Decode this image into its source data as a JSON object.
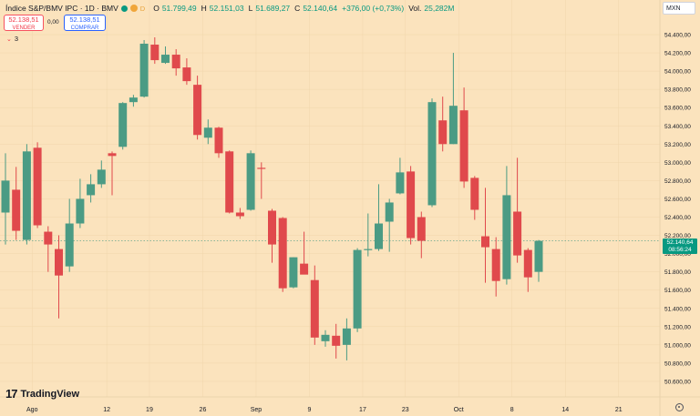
{
  "header": {
    "symbol": "Índice S&P/BMV IPC · 1D · BMV",
    "status_letter": "D",
    "ohlc": [
      {
        "label": "O",
        "value": "51.799,49"
      },
      {
        "label": "H",
        "value": "52.151,03"
      },
      {
        "label": "L",
        "value": "51.689,27"
      },
      {
        "label": "C",
        "value": "52.140,64"
      }
    ],
    "change": "+376,00 (+0,73%)",
    "volume_label": "Vol.",
    "volume_value": "25,282M"
  },
  "trade": {
    "sell_price": "52.138,51",
    "sell_label": "VENDER",
    "spread": "0,00",
    "buy_price": "52.138,51",
    "buy_label": "COMPRAR"
  },
  "indicator": {
    "count": "3"
  },
  "currency": "MXN",
  "last_price": {
    "value": "52.140,64",
    "countdown": "08:56:24"
  },
  "brand": "TradingView",
  "colors": {
    "up": "#4b9b84",
    "down": "#e0494c",
    "background": "#fbe3bd"
  },
  "chart_data": {
    "type": "candlestick",
    "title": "Índice S&P/BMV IPC · 1D · BMV",
    "ylim": [
      50500,
      54550
    ],
    "y_ticks": [
      50600,
      50800,
      51000,
      51200,
      51400,
      51600,
      51800,
      52000,
      52200,
      52400,
      52600,
      52800,
      53000,
      53200,
      53400,
      53600,
      53800,
      54000,
      54200,
      54400
    ],
    "y_tick_labels": [
      "50.600,00",
      "50.800,00",
      "51.000,00",
      "51.200,00",
      "51.400,00",
      "51.600,00",
      "51.800,00",
      "52.000,00",
      "52.200,00",
      "52.400,00",
      "52.600,00",
      "52.800,00",
      "53.000,00",
      "53.200,00",
      "53.400,00",
      "53.600,00",
      "53.800,00",
      "54.000,00",
      "54.200,00",
      "54.400,00"
    ],
    "x_ticks": [
      {
        "index": 2.5,
        "label": "Ago"
      },
      {
        "index": 9.5,
        "label": "12"
      },
      {
        "index": 13.5,
        "label": "19"
      },
      {
        "index": 18.5,
        "label": "26"
      },
      {
        "index": 23.5,
        "label": "Sep"
      },
      {
        "index": 28.5,
        "label": "9"
      },
      {
        "index": 33.5,
        "label": "17"
      },
      {
        "index": 37.5,
        "label": "23"
      },
      {
        "index": 42.5,
        "label": "Oct"
      },
      {
        "index": 47.5,
        "label": "8"
      },
      {
        "index": 52.5,
        "label": "14"
      },
      {
        "index": 57.5,
        "label": "21"
      }
    ],
    "candles": [
      {
        "o": 52450,
        "h": 53100,
        "l": 52100,
        "c": 52800
      },
      {
        "o": 52700,
        "h": 52950,
        "l": 52150,
        "c": 52250
      },
      {
        "o": 52150,
        "h": 53200,
        "l": 52100,
        "c": 53120
      },
      {
        "o": 53160,
        "h": 53220,
        "l": 52280,
        "c": 52310
      },
      {
        "o": 52240,
        "h": 52300,
        "l": 51800,
        "c": 52100
      },
      {
        "o": 52050,
        "h": 52200,
        "l": 51290,
        "c": 51760
      },
      {
        "o": 51860,
        "h": 52600,
        "l": 51800,
        "c": 52330
      },
      {
        "o": 52330,
        "h": 52820,
        "l": 52280,
        "c": 52600
      },
      {
        "o": 52640,
        "h": 52870,
        "l": 52560,
        "c": 52760
      },
      {
        "o": 52760,
        "h": 53020,
        "l": 52720,
        "c": 52920
      },
      {
        "o": 53100,
        "h": 53120,
        "l": 52640,
        "c": 53070
      },
      {
        "o": 53170,
        "h": 53660,
        "l": 53140,
        "c": 53650
      },
      {
        "o": 53660,
        "h": 53740,
        "l": 53610,
        "c": 53710
      },
      {
        "o": 53720,
        "h": 54340,
        "l": 53710,
        "c": 54300
      },
      {
        "o": 54290,
        "h": 54370,
        "l": 54080,
        "c": 54120
      },
      {
        "o": 54090,
        "h": 54270,
        "l": 54080,
        "c": 54180
      },
      {
        "o": 54180,
        "h": 54240,
        "l": 53950,
        "c": 54030
      },
      {
        "o": 54040,
        "h": 54140,
        "l": 53850,
        "c": 53890
      },
      {
        "o": 53850,
        "h": 53950,
        "l": 53250,
        "c": 53300
      },
      {
        "o": 53270,
        "h": 53470,
        "l": 53200,
        "c": 53380
      },
      {
        "o": 53380,
        "h": 53390,
        "l": 53050,
        "c": 53100
      },
      {
        "o": 53120,
        "h": 53130,
        "l": 52440,
        "c": 52450
      },
      {
        "o": 52450,
        "h": 52500,
        "l": 52380,
        "c": 52410
      },
      {
        "o": 52480,
        "h": 53130,
        "l": 52470,
        "c": 53100
      },
      {
        "o": 52940,
        "h": 53000,
        "l": 52600,
        "c": 52930
      },
      {
        "o": 52470,
        "h": 52490,
        "l": 51900,
        "c": 52100
      },
      {
        "o": 52390,
        "h": 52400,
        "l": 51580,
        "c": 51620
      },
      {
        "o": 51630,
        "h": 51960,
        "l": 51620,
        "c": 51960
      },
      {
        "o": 51890,
        "h": 52240,
        "l": 51780,
        "c": 51770
      },
      {
        "o": 51710,
        "h": 51870,
        "l": 51000,
        "c": 51080
      },
      {
        "o": 51040,
        "h": 51160,
        "l": 50980,
        "c": 51110
      },
      {
        "o": 51100,
        "h": 51230,
        "l": 50850,
        "c": 50990
      },
      {
        "o": 51000,
        "h": 51290,
        "l": 50830,
        "c": 51180
      },
      {
        "o": 51180,
        "h": 52060,
        "l": 51140,
        "c": 52040
      },
      {
        "o": 52040,
        "h": 52440,
        "l": 51970,
        "c": 52050
      },
      {
        "o": 52050,
        "h": 52760,
        "l": 52030,
        "c": 52330
      },
      {
        "o": 52350,
        "h": 52600,
        "l": 52020,
        "c": 52560
      },
      {
        "o": 52660,
        "h": 53050,
        "l": 52650,
        "c": 52890
      },
      {
        "o": 52900,
        "h": 52960,
        "l": 52100,
        "c": 52170
      },
      {
        "o": 52400,
        "h": 52460,
        "l": 51950,
        "c": 52140
      },
      {
        "o": 52530,
        "h": 53700,
        "l": 52510,
        "c": 53660
      },
      {
        "o": 53460,
        "h": 53720,
        "l": 53120,
        "c": 53200
      },
      {
        "o": 53200,
        "h": 54200,
        "l": 53200,
        "c": 53620
      },
      {
        "o": 53570,
        "h": 53820,
        "l": 52720,
        "c": 52790
      },
      {
        "o": 52830,
        "h": 52850,
        "l": 52370,
        "c": 52480
      },
      {
        "o": 52190,
        "h": 52720,
        "l": 51680,
        "c": 52070
      },
      {
        "o": 52050,
        "h": 52180,
        "l": 51530,
        "c": 51700
      },
      {
        "o": 51720,
        "h": 52960,
        "l": 51660,
        "c": 52640
      },
      {
        "o": 52460,
        "h": 53050,
        "l": 51900,
        "c": 51980
      },
      {
        "o": 52040,
        "h": 52060,
        "l": 51580,
        "c": 51740
      },
      {
        "o": 51800,
        "h": 52150,
        "l": 51690,
        "c": 52140
      }
    ]
  }
}
